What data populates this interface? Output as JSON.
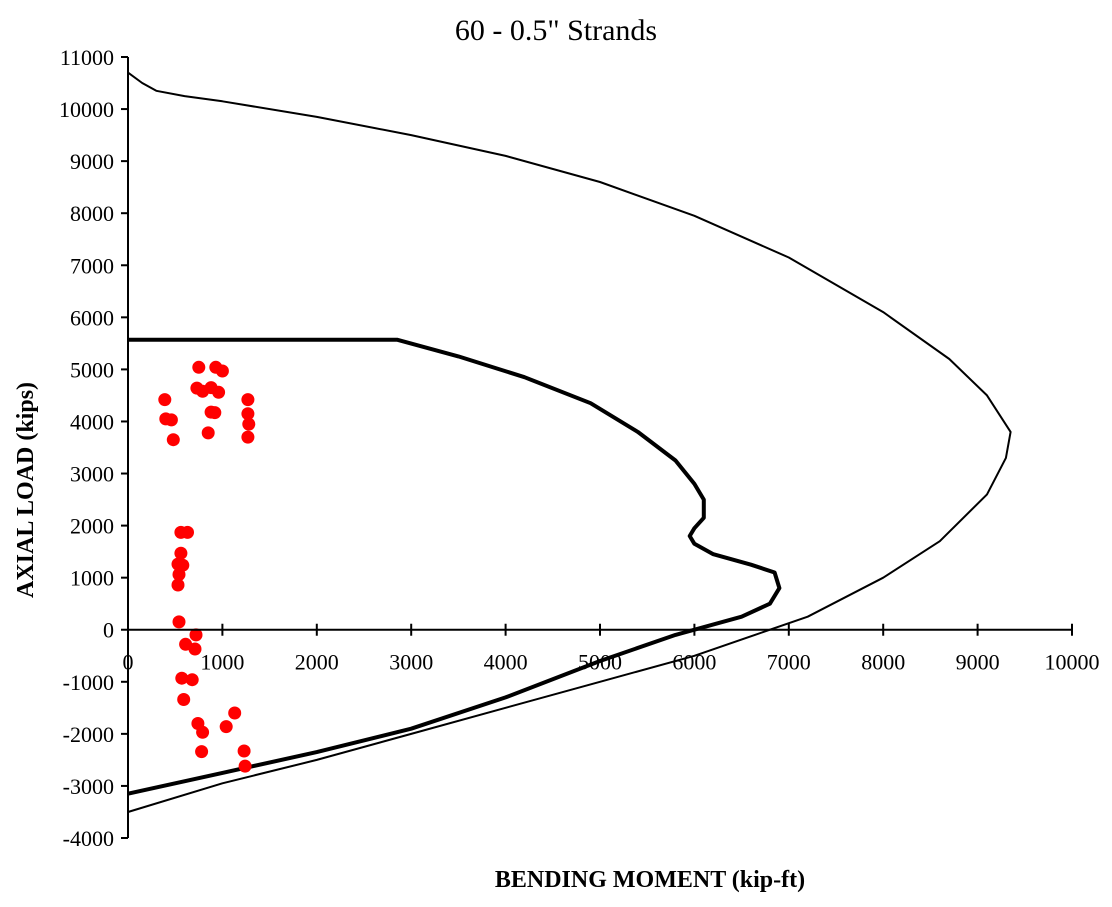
{
  "chart_data": {
    "type": "scatter",
    "title": "60 - 0.5\" Strands",
    "xlabel": "BENDING MOMENT (kip-ft)",
    "ylabel": "AXIAL LOAD (kips)",
    "xlim": [
      0,
      10000
    ],
    "ylim": [
      -4000,
      11000
    ],
    "x_ticks": [
      0,
      1000,
      2000,
      3000,
      4000,
      5000,
      6000,
      7000,
      8000,
      9000,
      10000
    ],
    "y_ticks": [
      11000,
      10000,
      9000,
      8000,
      7000,
      6000,
      5000,
      4000,
      3000,
      2000,
      1000,
      0,
      -1000,
      -2000,
      -3000,
      -4000
    ],
    "grid": false,
    "legend": "none",
    "colors": {
      "nominal": "#000000",
      "factored": "#000000",
      "demand": "#ff0000"
    },
    "series": [
      {
        "kind": "line",
        "style": "thin",
        "points": [
          [
            0,
            10700
          ],
          [
            150,
            10500
          ],
          [
            300,
            10350
          ],
          [
            600,
            10250
          ],
          [
            1000,
            10150
          ],
          [
            2000,
            9850
          ],
          [
            3000,
            9500
          ],
          [
            4000,
            9100
          ],
          [
            5000,
            8600
          ],
          [
            6000,
            7950
          ],
          [
            7000,
            7150
          ],
          [
            8000,
            6100
          ],
          [
            8700,
            5200
          ],
          [
            9100,
            4500
          ],
          [
            9350,
            3800
          ],
          [
            9300,
            3300
          ],
          [
            9100,
            2600
          ],
          [
            8600,
            1700
          ],
          [
            8000,
            1000
          ],
          [
            7200,
            250
          ],
          [
            6000,
            -500
          ],
          [
            5000,
            -1000
          ],
          [
            4000,
            -1500
          ],
          [
            3000,
            -2000
          ],
          [
            2000,
            -2500
          ],
          [
            1000,
            -2950
          ],
          [
            0,
            -3500
          ]
        ]
      },
      {
        "kind": "line",
        "style": "thick",
        "points": [
          [
            0,
            5570
          ],
          [
            2850,
            5570
          ],
          [
            3500,
            5250
          ],
          [
            4200,
            4850
          ],
          [
            4900,
            4350
          ],
          [
            5400,
            3800
          ],
          [
            5800,
            3250
          ],
          [
            6000,
            2800
          ],
          [
            6100,
            2500
          ],
          [
            6100,
            2150
          ],
          [
            6000,
            1950
          ],
          [
            5950,
            1800
          ],
          [
            6000,
            1650
          ],
          [
            6200,
            1450
          ],
          [
            6600,
            1250
          ],
          [
            6850,
            1100
          ],
          [
            6900,
            800
          ],
          [
            6800,
            500
          ],
          [
            6500,
            250
          ],
          [
            5800,
            -100
          ],
          [
            5000,
            -600
          ],
          [
            4000,
            -1300
          ],
          [
            3000,
            -1900
          ],
          [
            2000,
            -2350
          ],
          [
            1000,
            -2750
          ],
          [
            0,
            -3150
          ]
        ]
      },
      {
        "kind": "scatter",
        "points": [
          [
            390,
            4420
          ],
          [
            400,
            4050
          ],
          [
            460,
            4030
          ],
          [
            480,
            3650
          ],
          [
            750,
            5040
          ],
          [
            930,
            5040
          ],
          [
            1000,
            4970
          ],
          [
            730,
            4640
          ],
          [
            790,
            4580
          ],
          [
            880,
            4650
          ],
          [
            960,
            4560
          ],
          [
            880,
            4180
          ],
          [
            920,
            4170
          ],
          [
            850,
            3780
          ],
          [
            1270,
            4420
          ],
          [
            1270,
            4150
          ],
          [
            1280,
            3950
          ],
          [
            1270,
            3700
          ],
          [
            560,
            1870
          ],
          [
            630,
            1870
          ],
          [
            560,
            1470
          ],
          [
            530,
            1260
          ],
          [
            580,
            1240
          ],
          [
            540,
            1060
          ],
          [
            530,
            860
          ],
          [
            540,
            150
          ],
          [
            720,
            -100
          ],
          [
            610,
            -280
          ],
          [
            710,
            -370
          ],
          [
            570,
            -930
          ],
          [
            680,
            -960
          ],
          [
            590,
            -1340
          ],
          [
            1130,
            -1600
          ],
          [
            740,
            -1800
          ],
          [
            1040,
            -1860
          ],
          [
            790,
            -1970
          ],
          [
            780,
            -2340
          ],
          [
            1230,
            -2330
          ],
          [
            1240,
            -2620
          ]
        ]
      }
    ]
  }
}
